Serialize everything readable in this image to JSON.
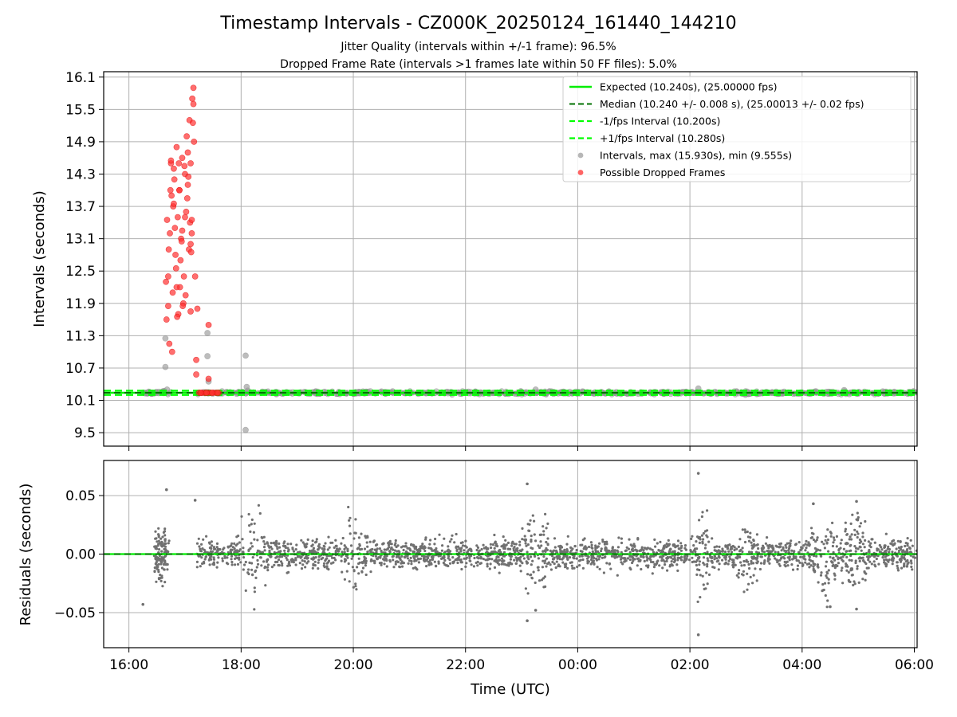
{
  "title": "Timestamp Intervals - CZ000K_20250124_161440_144210",
  "subtitle_1": "Jitter Quality (intervals within +/-1 frame): 96.5%",
  "subtitle_2": "Dropped Frame Rate (intervals >1 frames late within 50 FF files): 5.0%",
  "colors": {
    "expected": "#00ee00",
    "median": "#007000",
    "bounds": "#00ff00",
    "intervals": "#999999",
    "dropped": "#ff3030",
    "residuals": "#707070",
    "grid": "#b0b0b0"
  },
  "chart_data": [
    {
      "type": "scatter",
      "xlabel": "",
      "ylabel": "Intervals (seconds)",
      "x_unit": "hours since 00:00 UTC, 2025-01-24 (values > 24 are the next day)",
      "xlim": [
        15.55,
        30.05
      ],
      "ylim": [
        9.25,
        16.2
      ],
      "yticks": [
        9.5,
        10.1,
        10.7,
        11.3,
        11.9,
        12.5,
        13.1,
        13.7,
        14.3,
        14.9,
        15.5,
        16.1
      ],
      "ytick_labels": [
        "9.5",
        "10.1",
        "10.7",
        "11.3",
        "11.9",
        "12.5",
        "13.1",
        "13.7",
        "14.3",
        "14.9",
        "15.5",
        "16.1"
      ],
      "grid": true,
      "legend": {
        "placement": "upper right",
        "entries": [
          "Expected (10.240s), (25.00000 fps)",
          "Median (10.240 +/- 0.008 s), (25.00013 +/- 0.02 fps)",
          "-1/fps Interval (10.200s)",
          "+1/fps Interval (10.280s)",
          "Intervals, max (15.930s), min (9.555s)",
          "Possible Dropped Frames"
        ]
      },
      "reference_lines": {
        "expected": 10.24,
        "median": 10.24,
        "lower": 10.2,
        "upper": 10.28
      },
      "intervals_nominal": {
        "x_range": [
          16.25,
          30.05
        ],
        "y_center": 10.24,
        "y_spread": 0.03
      },
      "intervals_outliers": [
        {
          "x": 16.65,
          "y": 11.25
        },
        {
          "x": 16.65,
          "y": 10.72
        },
        {
          "x": 16.68,
          "y": 10.3
        },
        {
          "x": 17.4,
          "y": 11.35
        },
        {
          "x": 17.4,
          "y": 10.92
        },
        {
          "x": 17.42,
          "y": 10.45
        },
        {
          "x": 18.08,
          "y": 10.93
        },
        {
          "x": 18.08,
          "y": 9.55
        },
        {
          "x": 18.1,
          "y": 10.35
        },
        {
          "x": 18.12,
          "y": 10.28
        },
        {
          "x": 23.25,
          "y": 10.3
        },
        {
          "x": 26.15,
          "y": 10.32
        },
        {
          "x": 28.75,
          "y": 10.29
        }
      ],
      "dropped_frames": {
        "x": [
          16.67,
          16.7,
          16.72,
          16.73,
          16.75,
          16.76,
          16.78,
          16.8,
          16.82,
          16.83,
          16.85,
          16.87,
          16.88,
          16.9,
          16.92,
          16.93,
          16.95,
          16.97,
          16.98,
          17.0,
          17.02,
          17.03,
          17.05,
          17.07,
          17.08,
          17.1,
          17.12,
          17.13,
          17.15,
          16.66,
          16.68,
          16.71,
          16.74,
          16.77,
          16.79,
          16.81,
          16.84,
          16.86,
          16.89,
          16.91,
          16.94,
          16.96,
          16.99,
          17.01,
          17.04,
          17.06,
          17.09,
          17.11,
          17.14,
          17.16,
          16.7,
          16.75,
          16.8,
          16.85,
          16.9,
          16.95,
          17.0,
          17.05,
          17.1,
          17.15,
          17.2,
          17.22,
          17.2,
          17.18,
          17.42,
          17.42,
          17.25,
          17.3,
          17.35,
          17.4,
          17.45,
          17.5,
          17.55,
          17.6,
          17.28,
          17.38,
          17.48,
          17.58,
          17.1,
          17.12
        ],
        "y": [
          11.6,
          12.4,
          11.15,
          13.2,
          14.5,
          13.9,
          12.1,
          14.4,
          13.3,
          12.8,
          14.8,
          13.5,
          11.7,
          14.0,
          12.7,
          13.1,
          14.6,
          11.9,
          12.4,
          14.3,
          13.6,
          15.0,
          14.1,
          12.9,
          15.3,
          14.5,
          13.2,
          15.7,
          15.9,
          12.3,
          13.45,
          12.9,
          14.0,
          11.0,
          13.7,
          14.2,
          12.55,
          11.65,
          14.5,
          12.2,
          13.05,
          11.85,
          14.45,
          12.05,
          13.85,
          14.25,
          13.4,
          12.85,
          15.25,
          14.9,
          11.85,
          14.55,
          13.75,
          12.2,
          14.0,
          13.25,
          13.5,
          14.7,
          11.75,
          15.6,
          10.58,
          11.8,
          10.85,
          12.4,
          11.5,
          10.5,
          10.24,
          10.24,
          10.24,
          10.24,
          10.24,
          10.24,
          10.24,
          10.24,
          10.24,
          10.24,
          10.24,
          10.24,
          13.0,
          13.45
        ]
      }
    },
    {
      "type": "scatter",
      "xlabel": "Time (UTC)",
      "ylabel": "Residuals (seconds)",
      "xlim": [
        15.55,
        30.05
      ],
      "ylim": [
        -0.08,
        0.08
      ],
      "yticks": [
        -0.05,
        0.0,
        0.05
      ],
      "ytick_labels": [
        "−0.05",
        "0.00",
        "0.05"
      ],
      "xticks": [
        16,
        18,
        20,
        22,
        24,
        26,
        28,
        30
      ],
      "xtick_labels": [
        "16:00",
        "18:00",
        "20:00",
        "22:00",
        "00:00",
        "02:00",
        "04:00",
        "06:00"
      ],
      "grid": true,
      "zero_line": 0.0,
      "bulk_spread": 0.012,
      "excluded_gap": [
        16.72,
        17.2
      ],
      "bursts": [
        {
          "x": 16.55,
          "amplitude": 0.02
        },
        {
          "x": 18.2,
          "amplitude": 0.04
        },
        {
          "x": 20.0,
          "amplitude": 0.03
        },
        {
          "x": 23.25,
          "amplitude": 0.04
        },
        {
          "x": 26.2,
          "amplitude": 0.03
        },
        {
          "x": 27.0,
          "amplitude": 0.03
        },
        {
          "x": 28.4,
          "amplitude": 0.035
        },
        {
          "x": 28.95,
          "amplitude": 0.04
        }
      ],
      "notable_points": [
        {
          "x": 16.25,
          "y": -0.043
        },
        {
          "x": 16.67,
          "y": 0.055
        },
        {
          "x": 17.18,
          "y": 0.046
        },
        {
          "x": 23.1,
          "y": 0.06
        },
        {
          "x": 23.1,
          "y": -0.057
        },
        {
          "x": 23.25,
          "y": -0.048
        },
        {
          "x": 26.15,
          "y": 0.069
        },
        {
          "x": 26.15,
          "y": -0.069
        },
        {
          "x": 28.5,
          "y": -0.045
        },
        {
          "x": 28.97,
          "y": 0.045
        },
        {
          "x": 28.97,
          "y": -0.047
        },
        {
          "x": 28.2,
          "y": 0.043
        }
      ]
    }
  ]
}
